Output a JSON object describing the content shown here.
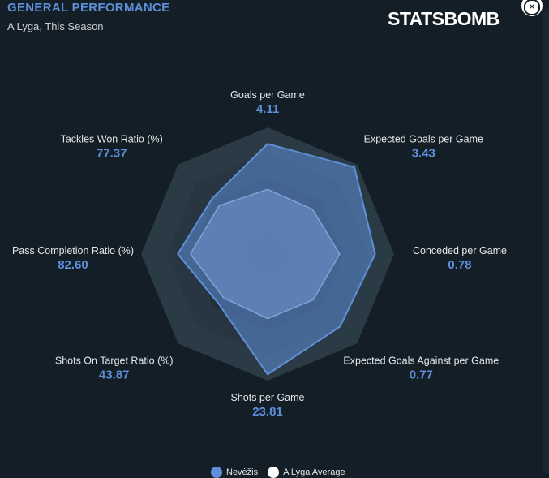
{
  "header": {
    "title": "GENERAL PERFORMANCE",
    "subtitle": "A Lyga, This Season",
    "brand": "STATSBOMB",
    "close_label": "✕"
  },
  "colors": {
    "team": "#5f8fd8",
    "average": "#8a9fc4",
    "rings": [
      "#1b262e",
      "#1f2b34",
      "#23303a",
      "#273640",
      "#2b3b46"
    ],
    "background": "#131e26"
  },
  "chart_data": {
    "type": "radar",
    "title": "GENERAL PERFORMANCE",
    "subtitle": "A Lyga, This Season",
    "axes": [
      {
        "label": "Goals per Game",
        "value": "4.11",
        "team": 0.87,
        "avg": 0.51
      },
      {
        "label": "Expected Goals per Game",
        "value": "3.43",
        "team": 0.97,
        "avg": 0.5
      },
      {
        "label": "Conceded per Game",
        "value": "0.78",
        "team": 0.85,
        "avg": 0.57
      },
      {
        "label": "Expected Goals Against per Game",
        "value": "0.77",
        "team": 0.81,
        "avg": 0.51
      },
      {
        "label": "Shots per Game",
        "value": "23.81",
        "team": 0.95,
        "avg": 0.51
      },
      {
        "label": "Shots On Target Ratio (%)",
        "value": "43.87",
        "team": 0.55,
        "avg": 0.49
      },
      {
        "label": "Pass Completion Ratio (%)",
        "value": "82.60",
        "team": 0.71,
        "avg": 0.61
      },
      {
        "label": "Tackles Won Ratio (%)",
        "value": "77.37",
        "team": 0.62,
        "avg": 0.54
      }
    ],
    "legend": [
      {
        "name": "Nevėžis"
      },
      {
        "name": "A Lyga Average"
      }
    ],
    "legend_position": "bottom",
    "rings": 5
  }
}
